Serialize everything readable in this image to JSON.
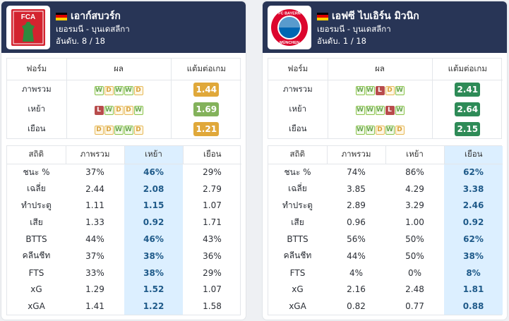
{
  "left": {
    "team_name": "เอาก์สบวร์ก",
    "league": "เยอรมนี - บุนเดสลีกา",
    "rank": "อันดับ. 8 / 18",
    "logo_text": "FCA",
    "form_header": [
      "ฟอร์ม",
      "ผล",
      "แต้มต่อเกม"
    ],
    "form_rows": [
      {
        "label": "ภาพรวม",
        "results": [
          "W",
          "D",
          "W",
          "W",
          "D"
        ],
        "ppg": "1.44",
        "ppg_color": "#e0a83a"
      },
      {
        "label": "เหย้า",
        "results": [
          "L",
          "W",
          "D",
          "D",
          "W"
        ],
        "ppg": "1.69",
        "ppg_color": "#83b25b"
      },
      {
        "label": "เยือน",
        "results": [
          "D",
          "D",
          "W",
          "W",
          "D"
        ],
        "ppg": "1.21",
        "ppg_color": "#e0a83a"
      }
    ],
    "stats_header": [
      "สถิติ",
      "ภาพรวม",
      "เหย้า",
      "เยือน"
    ],
    "highlight_col": 2,
    "stats_rows": [
      [
        "ชนะ %",
        "37%",
        "46%",
        "29%"
      ],
      [
        "เฉลี่ย",
        "2.44",
        "2.08",
        "2.79"
      ],
      [
        "ทำประตู",
        "1.11",
        "1.15",
        "1.07"
      ],
      [
        "เสีย",
        "1.33",
        "0.92",
        "1.71"
      ],
      [
        "BTTS",
        "44%",
        "46%",
        "43%"
      ],
      [
        "คลีนชีท",
        "37%",
        "38%",
        "36%"
      ],
      [
        "FTS",
        "33%",
        "38%",
        "29%"
      ],
      [
        "xG",
        "1.29",
        "1.52",
        "1.07"
      ],
      [
        "xGA",
        "1.41",
        "1.22",
        "1.58"
      ]
    ]
  },
  "right": {
    "team_name": "เอฟซี ไบเอิร์น มิวนิก",
    "league": "เยอรมนี - บุนเดสลีกา",
    "rank": "อันดับ. 1 / 18",
    "logo_text_top": "FC BAYERN",
    "logo_text_bottom": "MÜNCHEN",
    "form_header": [
      "ฟอร์ม",
      "ผล",
      "แต้มต่อเกม"
    ],
    "form_rows": [
      {
        "label": "ภาพรวม",
        "results": [
          "W",
          "W",
          "L",
          "D",
          "W"
        ],
        "ppg": "2.41",
        "ppg_color": "#2e8b57"
      },
      {
        "label": "เหย้า",
        "results": [
          "W",
          "W",
          "W",
          "L",
          "W"
        ],
        "ppg": "2.64",
        "ppg_color": "#2e8b57"
      },
      {
        "label": "เยือน",
        "results": [
          "W",
          "W",
          "D",
          "W",
          "D"
        ],
        "ppg": "2.15",
        "ppg_color": "#2e8b57"
      }
    ],
    "stats_header": [
      "สถิติ",
      "ภาพรวม",
      "เหย้า",
      "เยือน"
    ],
    "highlight_col": 3,
    "stats_rows": [
      [
        "ชนะ %",
        "74%",
        "86%",
        "62%"
      ],
      [
        "เฉลี่ย",
        "3.85",
        "4.29",
        "3.38"
      ],
      [
        "ทำประตู",
        "2.89",
        "3.29",
        "2.46"
      ],
      [
        "เสีย",
        "0.96",
        "1.00",
        "0.92"
      ],
      [
        "BTTS",
        "56%",
        "50%",
        "62%"
      ],
      [
        "คลีนชีท",
        "44%",
        "50%",
        "38%"
      ],
      [
        "FTS",
        "4%",
        "0%",
        "8%"
      ],
      [
        "xG",
        "2.16",
        "2.48",
        "1.81"
      ],
      [
        "xGA",
        "0.82",
        "0.77",
        "0.88"
      ]
    ]
  }
}
